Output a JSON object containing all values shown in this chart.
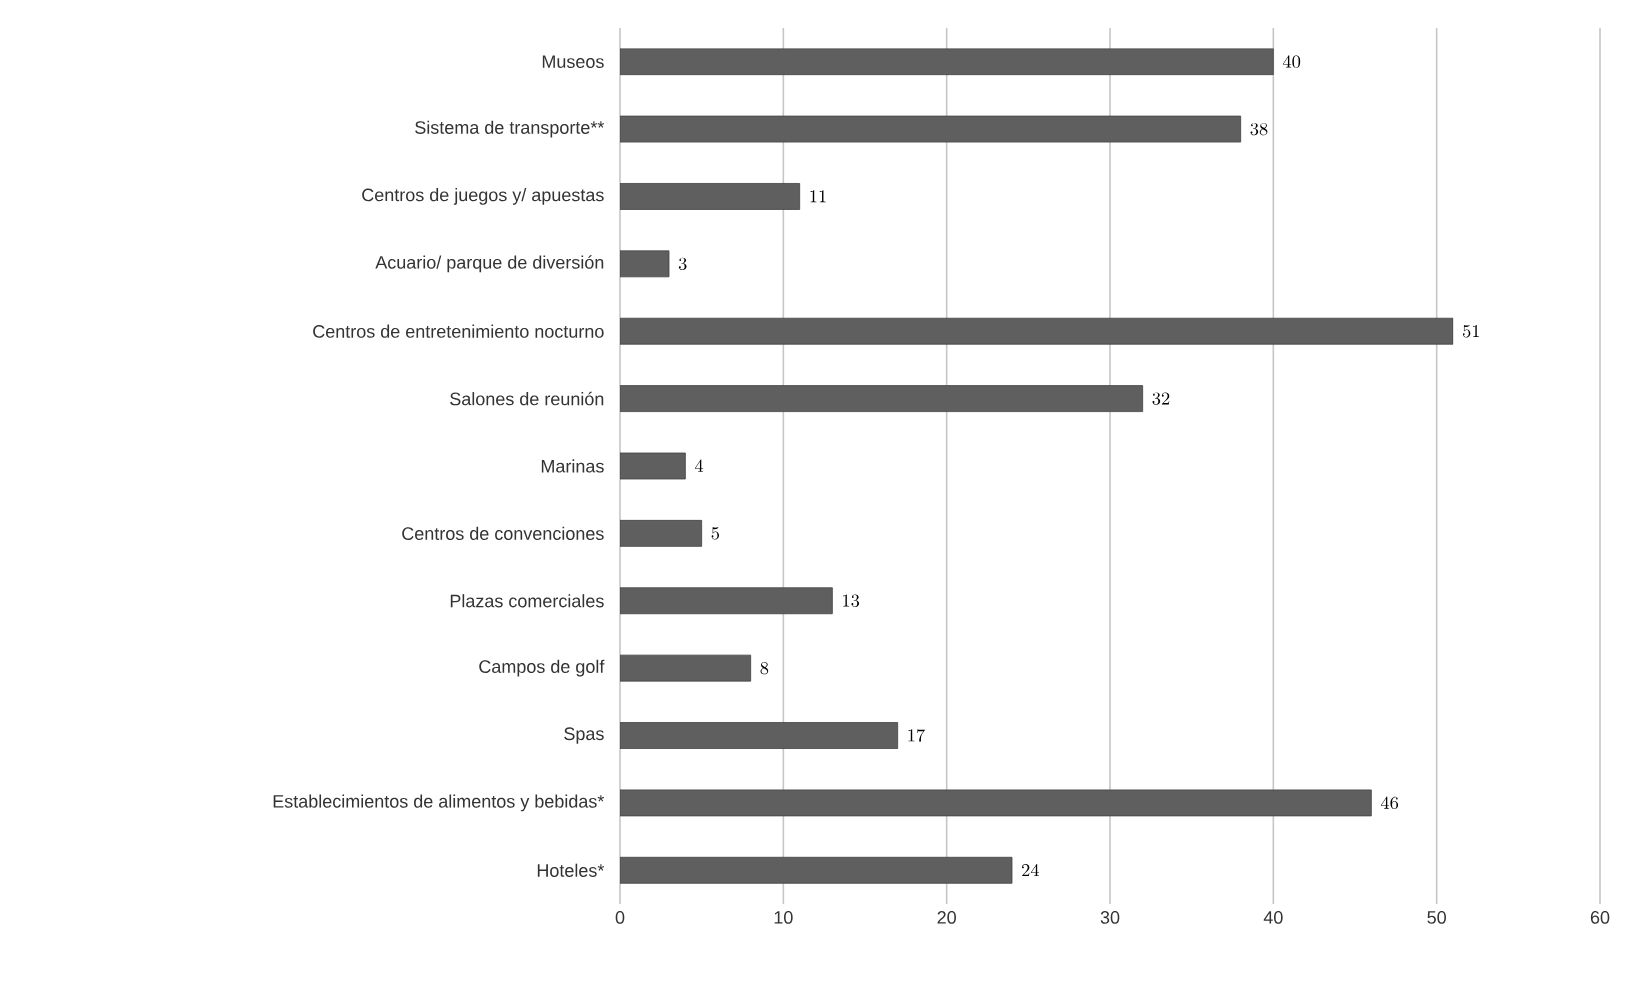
{
  "chart_data": {
    "type": "bar",
    "orientation": "horizontal",
    "categories": [
      "Museos",
      "Sistema de transporte**",
      "Centros de juegos y/ apuestas",
      "Acuario/ parque de diversión",
      "Centros de entretenimiento nocturno",
      "Salones de reunión",
      "Marinas",
      "Centros de convenciones",
      "Plazas comerciales",
      "Campos de golf",
      "Spas",
      "Establecimientos de alimentos y bebidas*",
      "Hoteles*"
    ],
    "values": [
      40,
      38,
      11,
      3,
      51,
      32,
      4,
      5,
      13,
      8,
      17,
      46,
      24
    ],
    "color": "#5f5f5f",
    "xlim": [
      0,
      60
    ],
    "xticks": [
      0,
      10,
      20,
      30,
      40,
      50,
      60
    ],
    "grid": "x",
    "data_labels": true
  }
}
